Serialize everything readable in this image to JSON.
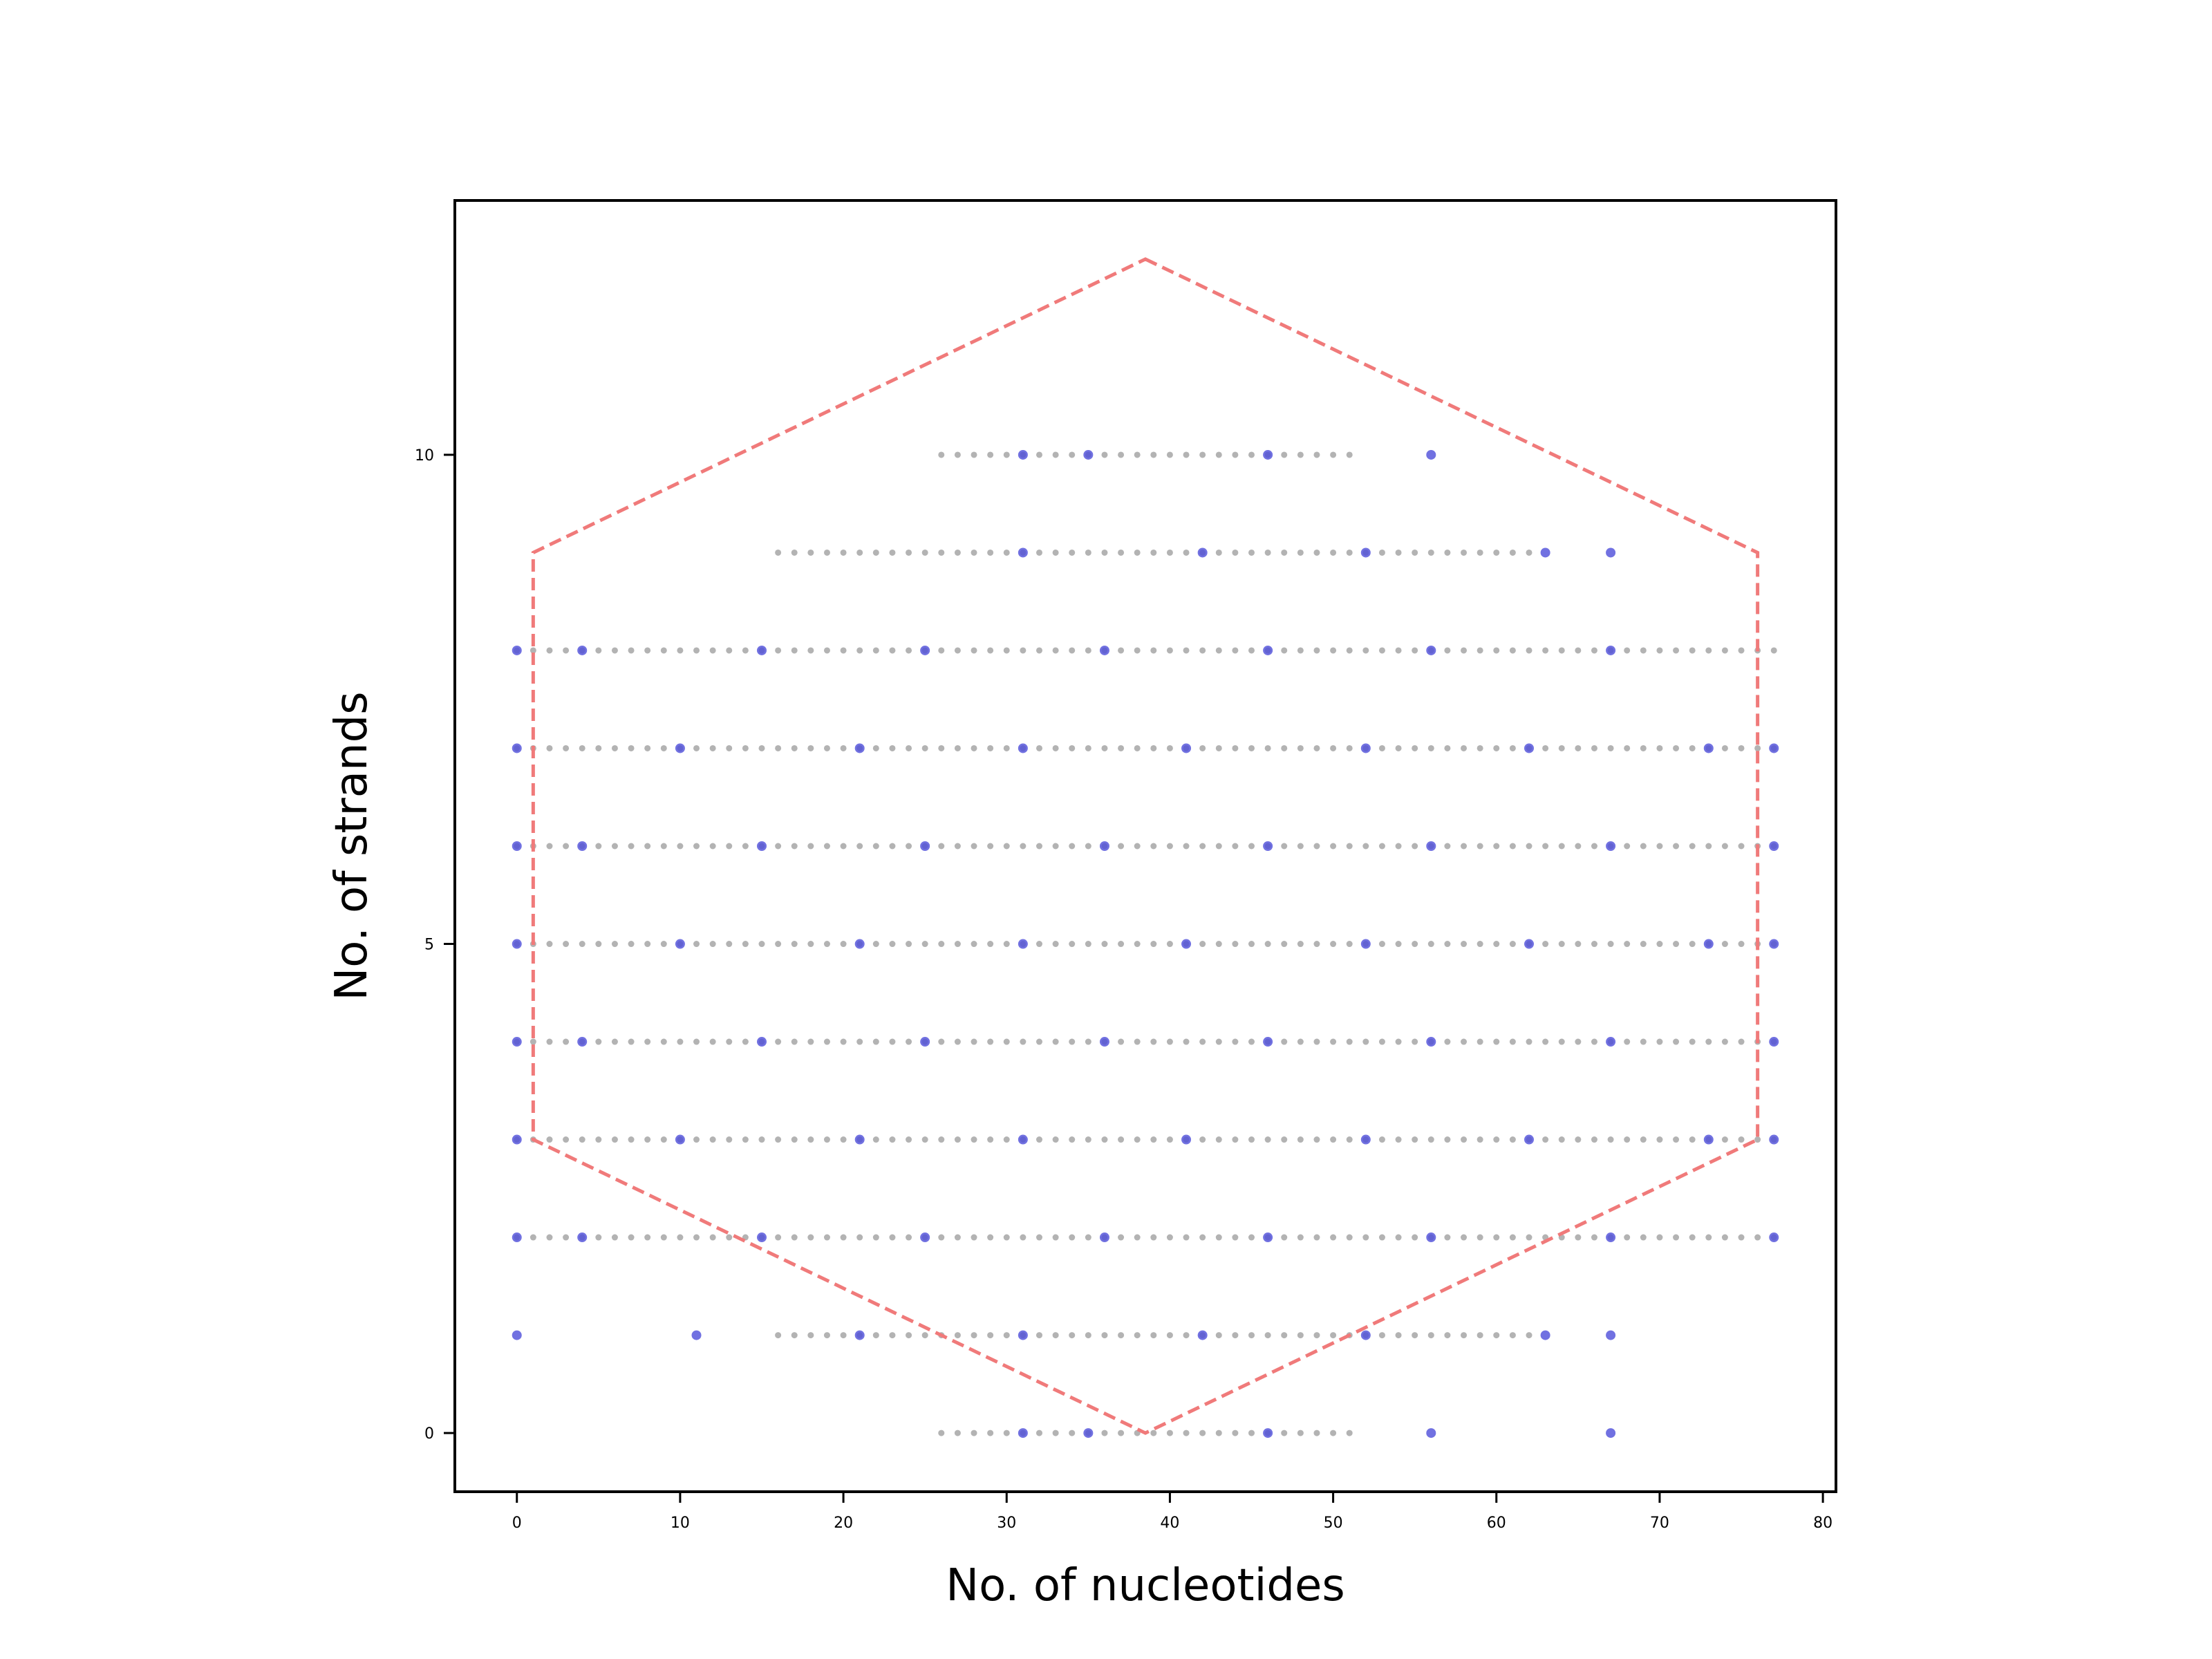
{
  "chart_data": {
    "type": "scatter",
    "title": "",
    "xlabel": "No. of nucleotides",
    "ylabel": "No. of strands",
    "xlim": [
      -3.8,
      80.8
    ],
    "ylim": [
      -0.6,
      12.6
    ],
    "xticks": [
      0,
      10,
      20,
      30,
      40,
      50,
      60,
      70,
      80
    ],
    "yticks": [
      0,
      5,
      10
    ],
    "grid": false,
    "legend": "none",
    "colors": {
      "background_points": "#b3b3b3",
      "highlight_points": "#4d4dd9",
      "hexagon": "#f07a7a",
      "axes": "#000000"
    },
    "series": [
      {
        "style": "gray-dots",
        "rows": [
          {
            "y": 10,
            "x_from": 26,
            "x_to": 51
          },
          {
            "y": 9,
            "x_from": 16,
            "x_to": 62
          },
          {
            "y": 8,
            "x_from": 0,
            "x_to": 77
          },
          {
            "y": 7,
            "x_from": 0,
            "x_to": 77
          },
          {
            "y": 6,
            "x_from": 0,
            "x_to": 77
          },
          {
            "y": 5,
            "x_from": 0,
            "x_to": 77
          },
          {
            "y": 4,
            "x_from": 0,
            "x_to": 77
          },
          {
            "y": 3,
            "x_from": 0,
            "x_to": 77
          },
          {
            "y": 2,
            "x_from": 0,
            "x_to": 77
          },
          {
            "y": 1,
            "x_from": 16,
            "x_to": 62
          },
          {
            "y": 0,
            "x_from": 26,
            "x_to": 51
          }
        ]
      },
      {
        "style": "blue-dots",
        "points": [
          {
            "y": 10,
            "x": [
              31,
              35,
              46,
              56
            ]
          },
          {
            "y": 9,
            "x": [
              31,
              42,
              52,
              63,
              67
            ]
          },
          {
            "y": 8,
            "x": [
              0,
              4,
              15,
              25,
              36,
              46,
              56,
              67
            ]
          },
          {
            "y": 7,
            "x": [
              0,
              10,
              21,
              31,
              41,
              52,
              62,
              73,
              77
            ]
          },
          {
            "y": 6,
            "x": [
              0,
              4,
              15,
              25,
              36,
              46,
              56,
              67,
              77
            ]
          },
          {
            "y": 5,
            "x": [
              0,
              10,
              21,
              31,
              41,
              52,
              62,
              73,
              77
            ]
          },
          {
            "y": 4,
            "x": [
              0,
              4,
              15,
              25,
              36,
              46,
              56,
              67,
              77
            ]
          },
          {
            "y": 3,
            "x": [
              0,
              10,
              21,
              31,
              41,
              52,
              62,
              73,
              77
            ]
          },
          {
            "y": 2,
            "x": [
              0,
              4,
              15,
              25,
              36,
              46,
              56,
              67,
              77
            ]
          },
          {
            "y": 1,
            "x": [
              0,
              11,
              21,
              31,
              42,
              52,
              63,
              67
            ]
          },
          {
            "y": 0,
            "x": [
              31,
              35,
              46,
              56,
              67
            ]
          }
        ]
      }
    ],
    "hexagon": [
      [
        38.5,
        12
      ],
      [
        76,
        9
      ],
      [
        76,
        3
      ],
      [
        38.5,
        0
      ],
      [
        1,
        3
      ],
      [
        1,
        9
      ]
    ]
  }
}
